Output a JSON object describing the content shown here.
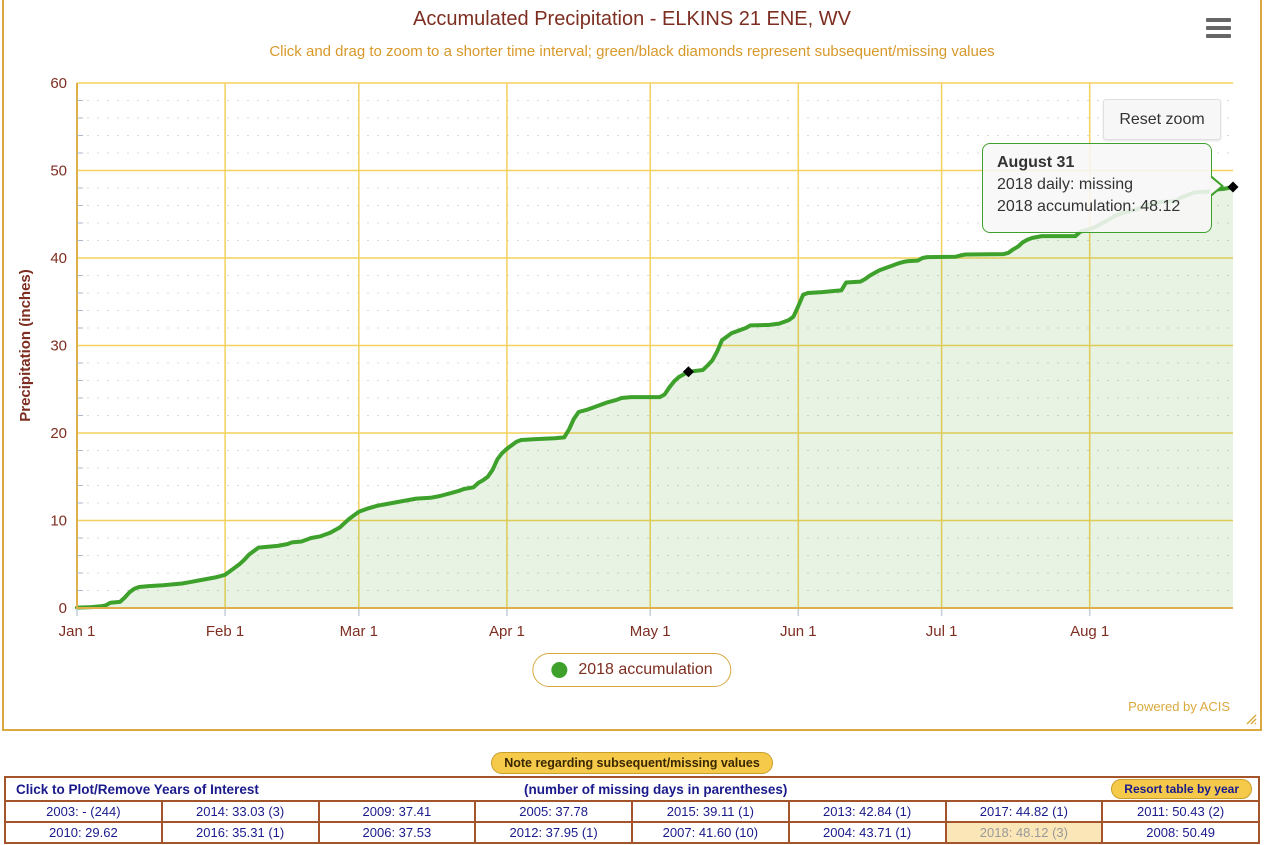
{
  "chart": {
    "title": "Accumulated Precipitation - ELKINS 21 ENE, WV",
    "subtitle": "Click and drag to zoom to a shorter time interval; green/black diamonds represent subsequent/missing values",
    "reset_zoom_label": "Reset zoom",
    "credit": "Powered by ACIS",
    "legend": {
      "label": "2018 accumulation",
      "marker_color": "#3EA12C"
    },
    "tooltip": {
      "title": "August 31",
      "line1": "2018 daily: missing",
      "line2": "2018 accumulation: 48.12"
    }
  },
  "chart_data": {
    "type": "area",
    "title": "Accumulated Precipitation - ELKINS 21 ENE, WV",
    "subtitle": "Click and drag to zoom to a shorter time interval; green/black diamonds represent subsequent/missing values",
    "xlabel": "",
    "ylabel": "Precipitation (inches)",
    "ylim": [
      0,
      60
    ],
    "yticks": [
      0,
      10,
      20,
      30,
      40,
      50,
      60
    ],
    "y_minor_step": 2,
    "x_range_days": [
      0,
      242
    ],
    "x_ticks": [
      {
        "label": "Jan 1",
        "day": 0
      },
      {
        "label": "Feb 1",
        "day": 31
      },
      {
        "label": "Mar 1",
        "day": 59
      },
      {
        "label": "Apr 1",
        "day": 90
      },
      {
        "label": "May 1",
        "day": 120
      },
      {
        "label": "Jun 1",
        "day": 151
      },
      {
        "label": "Jul 1",
        "day": 181
      },
      {
        "label": "Aug 1",
        "day": 212
      }
    ],
    "grid": "on",
    "legend_position": "bottom-center",
    "series": [
      {
        "name": "2018 accumulation",
        "color": "#3EA12C",
        "fill": "rgba(76,165,49,0.13)",
        "points": [
          [
            0,
            0.05
          ],
          [
            3,
            0.1
          ],
          [
            5,
            0.2
          ],
          [
            6,
            0.3
          ],
          [
            7,
            0.6
          ],
          [
            9,
            0.7
          ],
          [
            10,
            1.2
          ],
          [
            11,
            1.8
          ],
          [
            12,
            2.2
          ],
          [
            13,
            2.4
          ],
          [
            15,
            2.5
          ],
          [
            18,
            2.6
          ],
          [
            20,
            2.7
          ],
          [
            22,
            2.8
          ],
          [
            24,
            3.0
          ],
          [
            26,
            3.2
          ],
          [
            27,
            3.3
          ],
          [
            29,
            3.5
          ],
          [
            31,
            3.8
          ],
          [
            32,
            4.2
          ],
          [
            33,
            4.6
          ],
          [
            34,
            5.0
          ],
          [
            35,
            5.5
          ],
          [
            36,
            6.1
          ],
          [
            37,
            6.5
          ],
          [
            38,
            6.9
          ],
          [
            40,
            7.0
          ],
          [
            42,
            7.1
          ],
          [
            44,
            7.3
          ],
          [
            45,
            7.5
          ],
          [
            47,
            7.6
          ],
          [
            49,
            8.0
          ],
          [
            51,
            8.2
          ],
          [
            53,
            8.6
          ],
          [
            55,
            9.2
          ],
          [
            56,
            9.7
          ],
          [
            57,
            10.2
          ],
          [
            58,
            10.6
          ],
          [
            59,
            11.0
          ],
          [
            61,
            11.4
          ],
          [
            63,
            11.7
          ],
          [
            65,
            11.9
          ],
          [
            67,
            12.1
          ],
          [
            69,
            12.3
          ],
          [
            71,
            12.5
          ],
          [
            74,
            12.6
          ],
          [
            76,
            12.8
          ],
          [
            78,
            13.1
          ],
          [
            80,
            13.4
          ],
          [
            81,
            13.6
          ],
          [
            83,
            13.8
          ],
          [
            84,
            14.3
          ],
          [
            85,
            14.6
          ],
          [
            86,
            15.0
          ],
          [
            87,
            15.8
          ],
          [
            88,
            17.0
          ],
          [
            89,
            17.7
          ],
          [
            90,
            18.2
          ],
          [
            92,
            19.0
          ],
          [
            93,
            19.2
          ],
          [
            96,
            19.3
          ],
          [
            100,
            19.4
          ],
          [
            102,
            19.5
          ],
          [
            103,
            20.4
          ],
          [
            104,
            21.6
          ],
          [
            105,
            22.4
          ],
          [
            107,
            22.7
          ],
          [
            108,
            22.9
          ],
          [
            109,
            23.1
          ],
          [
            110,
            23.3
          ],
          [
            111,
            23.5
          ],
          [
            113,
            23.8
          ],
          [
            114,
            24.0
          ],
          [
            116,
            24.1
          ],
          [
            122,
            24.1
          ],
          [
            123,
            24.4
          ],
          [
            124,
            25.2
          ],
          [
            125,
            25.9
          ],
          [
            126,
            26.4
          ],
          [
            127,
            26.7
          ],
          [
            128,
            27.0
          ],
          [
            131,
            27.2
          ],
          [
            132,
            27.7
          ],
          [
            133,
            28.3
          ],
          [
            134,
            29.3
          ],
          [
            135,
            30.6
          ],
          [
            136,
            31.0
          ],
          [
            137,
            31.4
          ],
          [
            139,
            31.8
          ],
          [
            140,
            32.0
          ],
          [
            141,
            32.3
          ],
          [
            145,
            32.35
          ],
          [
            147,
            32.5
          ],
          [
            149,
            32.9
          ],
          [
            150,
            33.3
          ],
          [
            151,
            34.5
          ],
          [
            152,
            35.8
          ],
          [
            153,
            36.0
          ],
          [
            156,
            36.1
          ],
          [
            159,
            36.25
          ],
          [
            160,
            36.3
          ],
          [
            161,
            37.2
          ],
          [
            164,
            37.3
          ],
          [
            165,
            37.6
          ],
          [
            166,
            38.0
          ],
          [
            167,
            38.3
          ],
          [
            168,
            38.6
          ],
          [
            170,
            39.0
          ],
          [
            172,
            39.4
          ],
          [
            173,
            39.55
          ],
          [
            174,
            39.65
          ],
          [
            176,
            39.7
          ],
          [
            177,
            40.0
          ],
          [
            178,
            40.1
          ],
          [
            184,
            40.15
          ],
          [
            185,
            40.3
          ],
          [
            186,
            40.4
          ],
          [
            194,
            40.45
          ],
          [
            195,
            40.6
          ],
          [
            196,
            41.0
          ],
          [
            197,
            41.3
          ],
          [
            198,
            41.8
          ],
          [
            199,
            42.1
          ],
          [
            200,
            42.3
          ],
          [
            202,
            42.5
          ],
          [
            209,
            42.5
          ],
          [
            210,
            43.0
          ],
          [
            212,
            43.3
          ],
          [
            213,
            43.5
          ],
          [
            214,
            43.8
          ],
          [
            215,
            44.1
          ],
          [
            216,
            44.4
          ],
          [
            217,
            44.7
          ],
          [
            218,
            45.0
          ],
          [
            220,
            45.3
          ],
          [
            222,
            45.6
          ],
          [
            223,
            45.8
          ],
          [
            224,
            46.0
          ],
          [
            225,
            46.2
          ],
          [
            227,
            46.4
          ],
          [
            230,
            46.5
          ],
          [
            231,
            46.9
          ],
          [
            232,
            47.1
          ],
          [
            233,
            47.3
          ],
          [
            234,
            47.5
          ],
          [
            237,
            47.6
          ],
          [
            238,
            47.8
          ],
          [
            240,
            47.9
          ],
          [
            241,
            48.0
          ],
          [
            242,
            48.12
          ]
        ]
      }
    ],
    "markers": [
      {
        "day": 128,
        "value": 27.0,
        "color": "#000000",
        "meaning": "missing value (black diamond)"
      },
      {
        "day": 242,
        "value": 48.12,
        "color": "#000000",
        "meaning": "missing value (black diamond)"
      }
    ]
  },
  "bottom": {
    "note_button": "Note regarding subsequent/missing values",
    "table": {
      "header_left": "Click to Plot/Remove Years of Interest",
      "header_center": "(number of missing days in parentheses)",
      "resort_button": "Resort table by year",
      "rows": [
        [
          {
            "text": "2003: - (244)"
          },
          {
            "text": "2014: 33.03 (3)"
          },
          {
            "text": "2009: 37.41"
          },
          {
            "text": "2005: 37.78"
          },
          {
            "text": "2015: 39.11 (1)"
          },
          {
            "text": "2013: 42.84 (1)"
          },
          {
            "text": "2017: 44.82 (1)"
          },
          {
            "text": "2011: 50.43 (2)"
          }
        ],
        [
          {
            "text": "2010: 29.62"
          },
          {
            "text": "2016: 35.31 (1)"
          },
          {
            "text": "2006: 37.53"
          },
          {
            "text": "2012: 37.95 (1)"
          },
          {
            "text": "2007: 41.60 (10)"
          },
          {
            "text": "2004: 43.71 (1)"
          },
          {
            "text": "2018: 48.12 (3)",
            "highlight": true
          },
          {
            "text": "2008: 50.49"
          }
        ]
      ]
    }
  },
  "colors": {
    "title_brown": "#7d2e21",
    "subtitle_gold": "#D8992B",
    "grid_gold": "#F3D15C",
    "axis_gold": "#DFAF4A",
    "border_gold": "#DBA842",
    "line_green": "#3EA12C",
    "navy_text": "#1A1A8C",
    "table_border": "#A3542B",
    "highlight_bg": "#FBE6B8",
    "credit_gold": "#D9A93D"
  }
}
